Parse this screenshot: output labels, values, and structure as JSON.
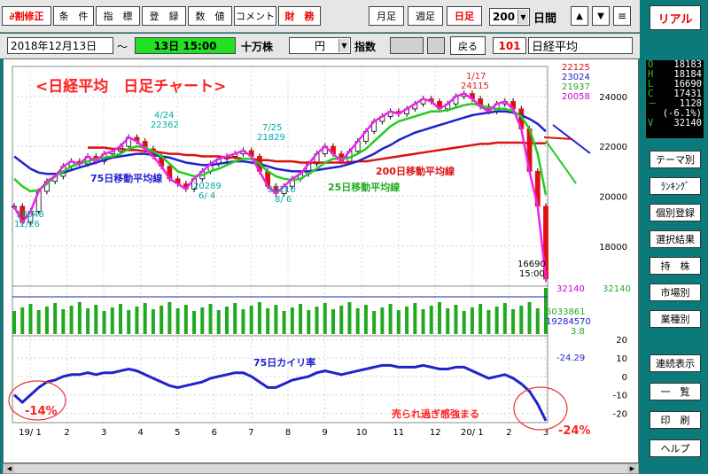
{
  "toolbar": {
    "buttons": [
      "∂割修正",
      "条　件",
      "指　標",
      "登　録",
      "数　値",
      "コメント",
      "財　務"
    ],
    "period_buttons": [
      "月足",
      "週足",
      "日足"
    ],
    "days_value": "200",
    "days_label": "日間",
    "menu_icon": "≡",
    "up_icon": "▲",
    "down_icon": "▼"
  },
  "toolbar2": {
    "date": "2018年12月13日",
    "tilde": "～",
    "time": "13日 15:00",
    "unit": "十万株",
    "currency": "円",
    "index_label": "指数",
    "back_label": "戻る",
    "code": "101",
    "name": "日経平均"
  },
  "right_panel": {
    "real_label": "リアル",
    "quote": [
      {
        "k": "O",
        "v": "18183"
      },
      {
        "k": "H",
        "v": "18184"
      },
      {
        "k": "L",
        "v": "16690"
      },
      {
        "k": "C",
        "v": "17431"
      },
      {
        "k": "－",
        "v": "1128"
      },
      {
        "k": "",
        "v": "(-6.1%)"
      },
      {
        "k": "V",
        "v": "32140"
      }
    ],
    "buttons_top": [
      "テーマ別",
      "ﾗﾝｷﾝｸﾞ",
      "個別登録",
      "選択結果",
      "持　株",
      "市場別",
      "業種別"
    ],
    "buttons_bottom": [
      "連続表示",
      "一　覧",
      "印　刷",
      "ヘルプ"
    ]
  },
  "chart": {
    "title": "<日経平均　日足チャート>",
    "annotations": {
      "high1_date": "4/24",
      "high1_val": "22362",
      "high2_date": "7/25",
      "high2_val": "21829",
      "high3_date": "1/17",
      "high3_val": "24115",
      "low1_val": "18948",
      "low1_date": "12/26",
      "low2_val": "20289",
      "low2_date": "6/ 4",
      "low3_val": "20110",
      "low3_date": "8/ 6",
      "last_val": "16690",
      "last_time": "15:00",
      "ma75": "75日移動平均線",
      "ma25": "25日移動平均線",
      "ma200": "200日移動平均線",
      "kairi": "75日カイリ率",
      "oversold": "売られ過ぎ感強まる",
      "pct_left": "-14%",
      "pct_right": "-24%"
    },
    "legend_vals": {
      "v1": "22125",
      "v2": "23024",
      "v3": "21937",
      "v4": "20058"
    },
    "volume_vals": {
      "v1": "32140",
      "v2": "32140",
      "v3": "5033861",
      "v4": "19284570",
      "v5": "3.8"
    },
    "kairi_val": "-24.29"
  },
  "chart_data": {
    "type": "line",
    "price_axis": {
      "ticks": [
        "24000",
        "22000",
        "20000",
        "18000"
      ],
      "range": [
        16400,
        25200
      ]
    },
    "kairi_axis": {
      "ticks": [
        "20",
        "10",
        "0",
        "-10",
        "-20"
      ],
      "range": [
        -25,
        22
      ]
    },
    "x_ticks": [
      "19/ 1",
      "2",
      "3",
      "4",
      "5",
      "6",
      "7",
      "8",
      "9",
      "10",
      "11",
      "12",
      "20/ 1",
      "2",
      "3"
    ],
    "price": [
      19600,
      18948,
      19400,
      20200,
      20600,
      20800,
      21200,
      21400,
      21300,
      21600,
      21400,
      21700,
      21800,
      22000,
      22362,
      22200,
      21900,
      21600,
      21200,
      20700,
      20500,
      20289,
      20700,
      21000,
      21300,
      21500,
      21600,
      21700,
      21829,
      21600,
      21000,
      20400,
      20110,
      20400,
      20700,
      20900,
      21300,
      21700,
      22000,
      21700,
      21400,
      21800,
      22200,
      22600,
      23000,
      23200,
      23400,
      23300,
      23500,
      23700,
      23900,
      23800,
      23500,
      23700,
      24000,
      24115,
      23900,
      23600,
      23400,
      23700,
      23800,
      23500,
      22700,
      21000,
      19600,
      16690
    ],
    "ma25": [
      20700,
      20400,
      20200,
      20250,
      20500,
      20800,
      21000,
      21200,
      21300,
      21400,
      21500,
      21550,
      21600,
      21700,
      21900,
      22000,
      21950,
      21800,
      21600,
      21300,
      21000,
      20900,
      20800,
      20850,
      21000,
      21100,
      21250,
      21400,
      21500,
      21500,
      21300,
      21000,
      20800,
      20700,
      20650,
      20700,
      20900,
      21100,
      21350,
      21500,
      21500,
      21550,
      21700,
      21900,
      22200,
      22500,
      22800,
      23000,
      23100,
      23200,
      23300,
      23400,
      23400,
      23450,
      23550,
      23650,
      23700,
      23650,
      23550,
      23500,
      23500,
      23400,
      23200,
      22700,
      21700,
      20058
    ],
    "ma75": [
      21600,
      21350,
      21100,
      20950,
      20900,
      20900,
      20950,
      21050,
      21150,
      21250,
      21350,
      21450,
      21550,
      21600,
      21650,
      21700,
      21700,
      21650,
      21600,
      21550,
      21450,
      21350,
      21300,
      21250,
      21250,
      21300,
      21350,
      21400,
      21400,
      21350,
      21300,
      21200,
      21100,
      21050,
      21000,
      21000,
      21000,
      21050,
      21100,
      21150,
      21200,
      21300,
      21400,
      21550,
      21700,
      21900,
      22050,
      22250,
      22400,
      22550,
      22650,
      22750,
      22850,
      22950,
      23050,
      23150,
      23250,
      23300,
      23350,
      23400,
      23400,
      23350,
      23250,
      23100,
      22900,
      22600
    ],
    "ma200": [
      null,
      null,
      null,
      null,
      null,
      null,
      null,
      null,
      null,
      21950,
      21950,
      21950,
      21900,
      21900,
      21850,
      21850,
      21800,
      21800,
      21750,
      21700,
      21700,
      21650,
      21650,
      21600,
      21600,
      21600,
      21550,
      21550,
      21500,
      21500,
      21450,
      21450,
      21400,
      21400,
      21400,
      21350,
      21350,
      21350,
      21350,
      21350,
      21350,
      21350,
      21400,
      21400,
      21450,
      21500,
      21550,
      21600,
      21650,
      21700,
      21750,
      21800,
      21850,
      21900,
      21950,
      22000,
      22050,
      22100,
      22100,
      22150,
      22150,
      22150,
      22150,
      22125,
      22125,
      22125
    ],
    "kairi": [
      -10,
      -14,
      -10,
      -6,
      -3,
      -2,
      0,
      1,
      1,
      2,
      1,
      2,
      2,
      3,
      4,
      3,
      1,
      -1,
      -3,
      -5,
      -6,
      -5,
      -4,
      -3,
      -1,
      0,
      1,
      2,
      2,
      0,
      -3,
      -6,
      -6,
      -4,
      -2,
      -1,
      0,
      2,
      3,
      2,
      1,
      2,
      3,
      4,
      5,
      6,
      6,
      5,
      5,
      5,
      6,
      5,
      4,
      4,
      5,
      5,
      3,
      1,
      -1,
      0,
      1,
      -1,
      -4,
      -8,
      -15,
      -24
    ]
  }
}
